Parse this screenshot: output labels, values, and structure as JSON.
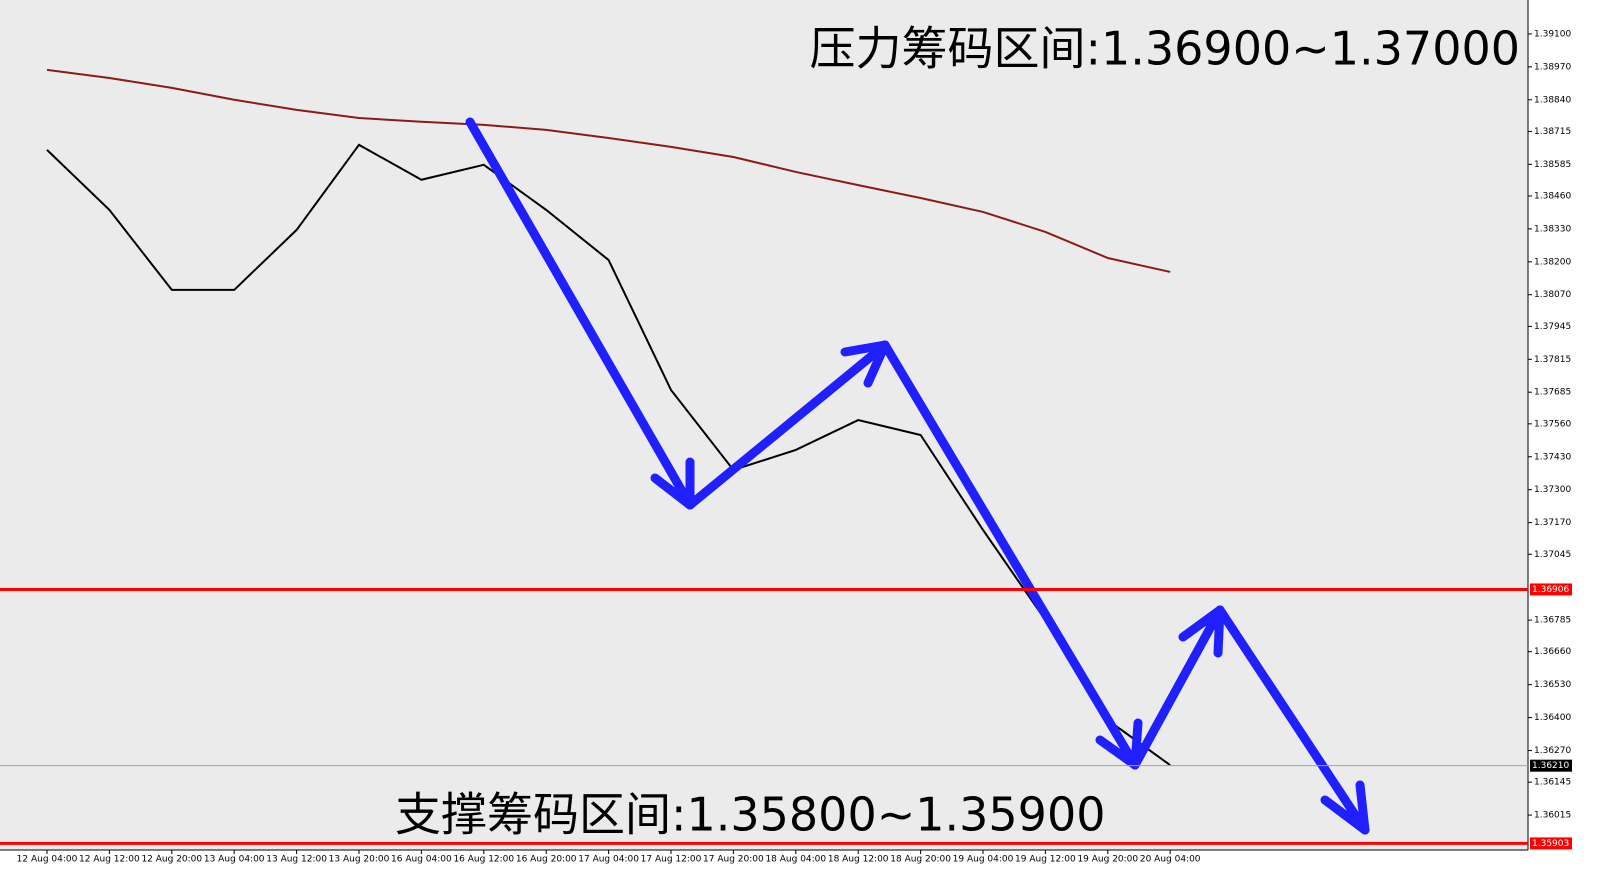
{
  "chart_data": {
    "type": "line",
    "annotations": [
      "压力筹码区间:1.36900~1.37000",
      "支撑筹码区间:1.35800~1.35900"
    ],
    "categories": [
      "12 Aug 04:00",
      "12 Aug 12:00",
      "12 Aug 20:00",
      "13 Aug 04:00",
      "13 Aug 12:00",
      "13 Aug 20:00",
      "16 Aug 04:00",
      "16 Aug 12:00",
      "16 Aug 20:00",
      "17 Aug 04:00",
      "17 Aug 12:00",
      "17 Aug 20:00",
      "18 Aug 04:00",
      "18 Aug 12:00",
      "18 Aug 20:00",
      "19 Aug 04:00",
      "19 Aug 12:00",
      "19 Aug 20:00",
      "20 Aug 04:00"
    ],
    "series": [
      {
        "color": "#000000",
        "values": [
          1.38642,
          1.38405,
          1.38089,
          1.38089,
          1.38326,
          1.38662,
          1.38524,
          1.38583,
          1.38405,
          1.38207,
          1.37694,
          1.37378,
          1.37457,
          1.37575,
          1.37516,
          1.37141,
          1.36785,
          1.3639,
          1.36212
        ]
      },
      {
        "color": "#8b1a1a",
        "values": [
          1.38958,
          1.38926,
          1.38887,
          1.3884,
          1.388,
          1.38768,
          1.38753,
          1.38741,
          1.38721,
          1.38689,
          1.38654,
          1.38614,
          1.38555,
          1.38503,
          1.38452,
          1.38397,
          1.38318,
          1.38215,
          1.3816
        ]
      }
    ],
    "ylim": [
      1.35877,
      1.39234
    ],
    "yticks": [
      {
        "value": 1.391,
        "label": "1.39100"
      },
      {
        "value": 1.3897,
        "label": "1.38970"
      },
      {
        "value": 1.3884,
        "label": "1.38840"
      },
      1.38715,
      1.38585,
      {
        "value": 1.3846,
        "label": "1.38460"
      },
      {
        "value": 1.3833,
        "label": "1.38330"
      },
      {
        "value": 1.382,
        "label": "1.38200"
      },
      {
        "value": 1.3807,
        "label": "1.38070"
      },
      1.37945,
      1.37815,
      1.37685,
      {
        "value": 1.3756,
        "label": "1.37560"
      },
      {
        "value": 1.3743,
        "label": "1.37430"
      },
      {
        "value": 1.373,
        "label": "1.37300"
      },
      {
        "value": 1.3717,
        "label": "1.37170"
      },
      1.37045,
      1.36785,
      {
        "value": 1.3666,
        "label": "1.36660"
      },
      {
        "value": 1.3653,
        "label": "1.36530"
      },
      {
        "value": 1.364,
        "label": "1.36400"
      },
      {
        "value": 1.3627,
        "label": "1.36270"
      },
      1.36145,
      1.36015
    ],
    "hlines": [
      {
        "value": 1.36906,
        "color": "#ff0000"
      },
      {
        "value": 1.35903,
        "color": "#ff0000"
      },
      {
        "value": 1.3621,
        "label": "1.36210",
        "color": "#9aa4b0"
      }
    ]
  }
}
